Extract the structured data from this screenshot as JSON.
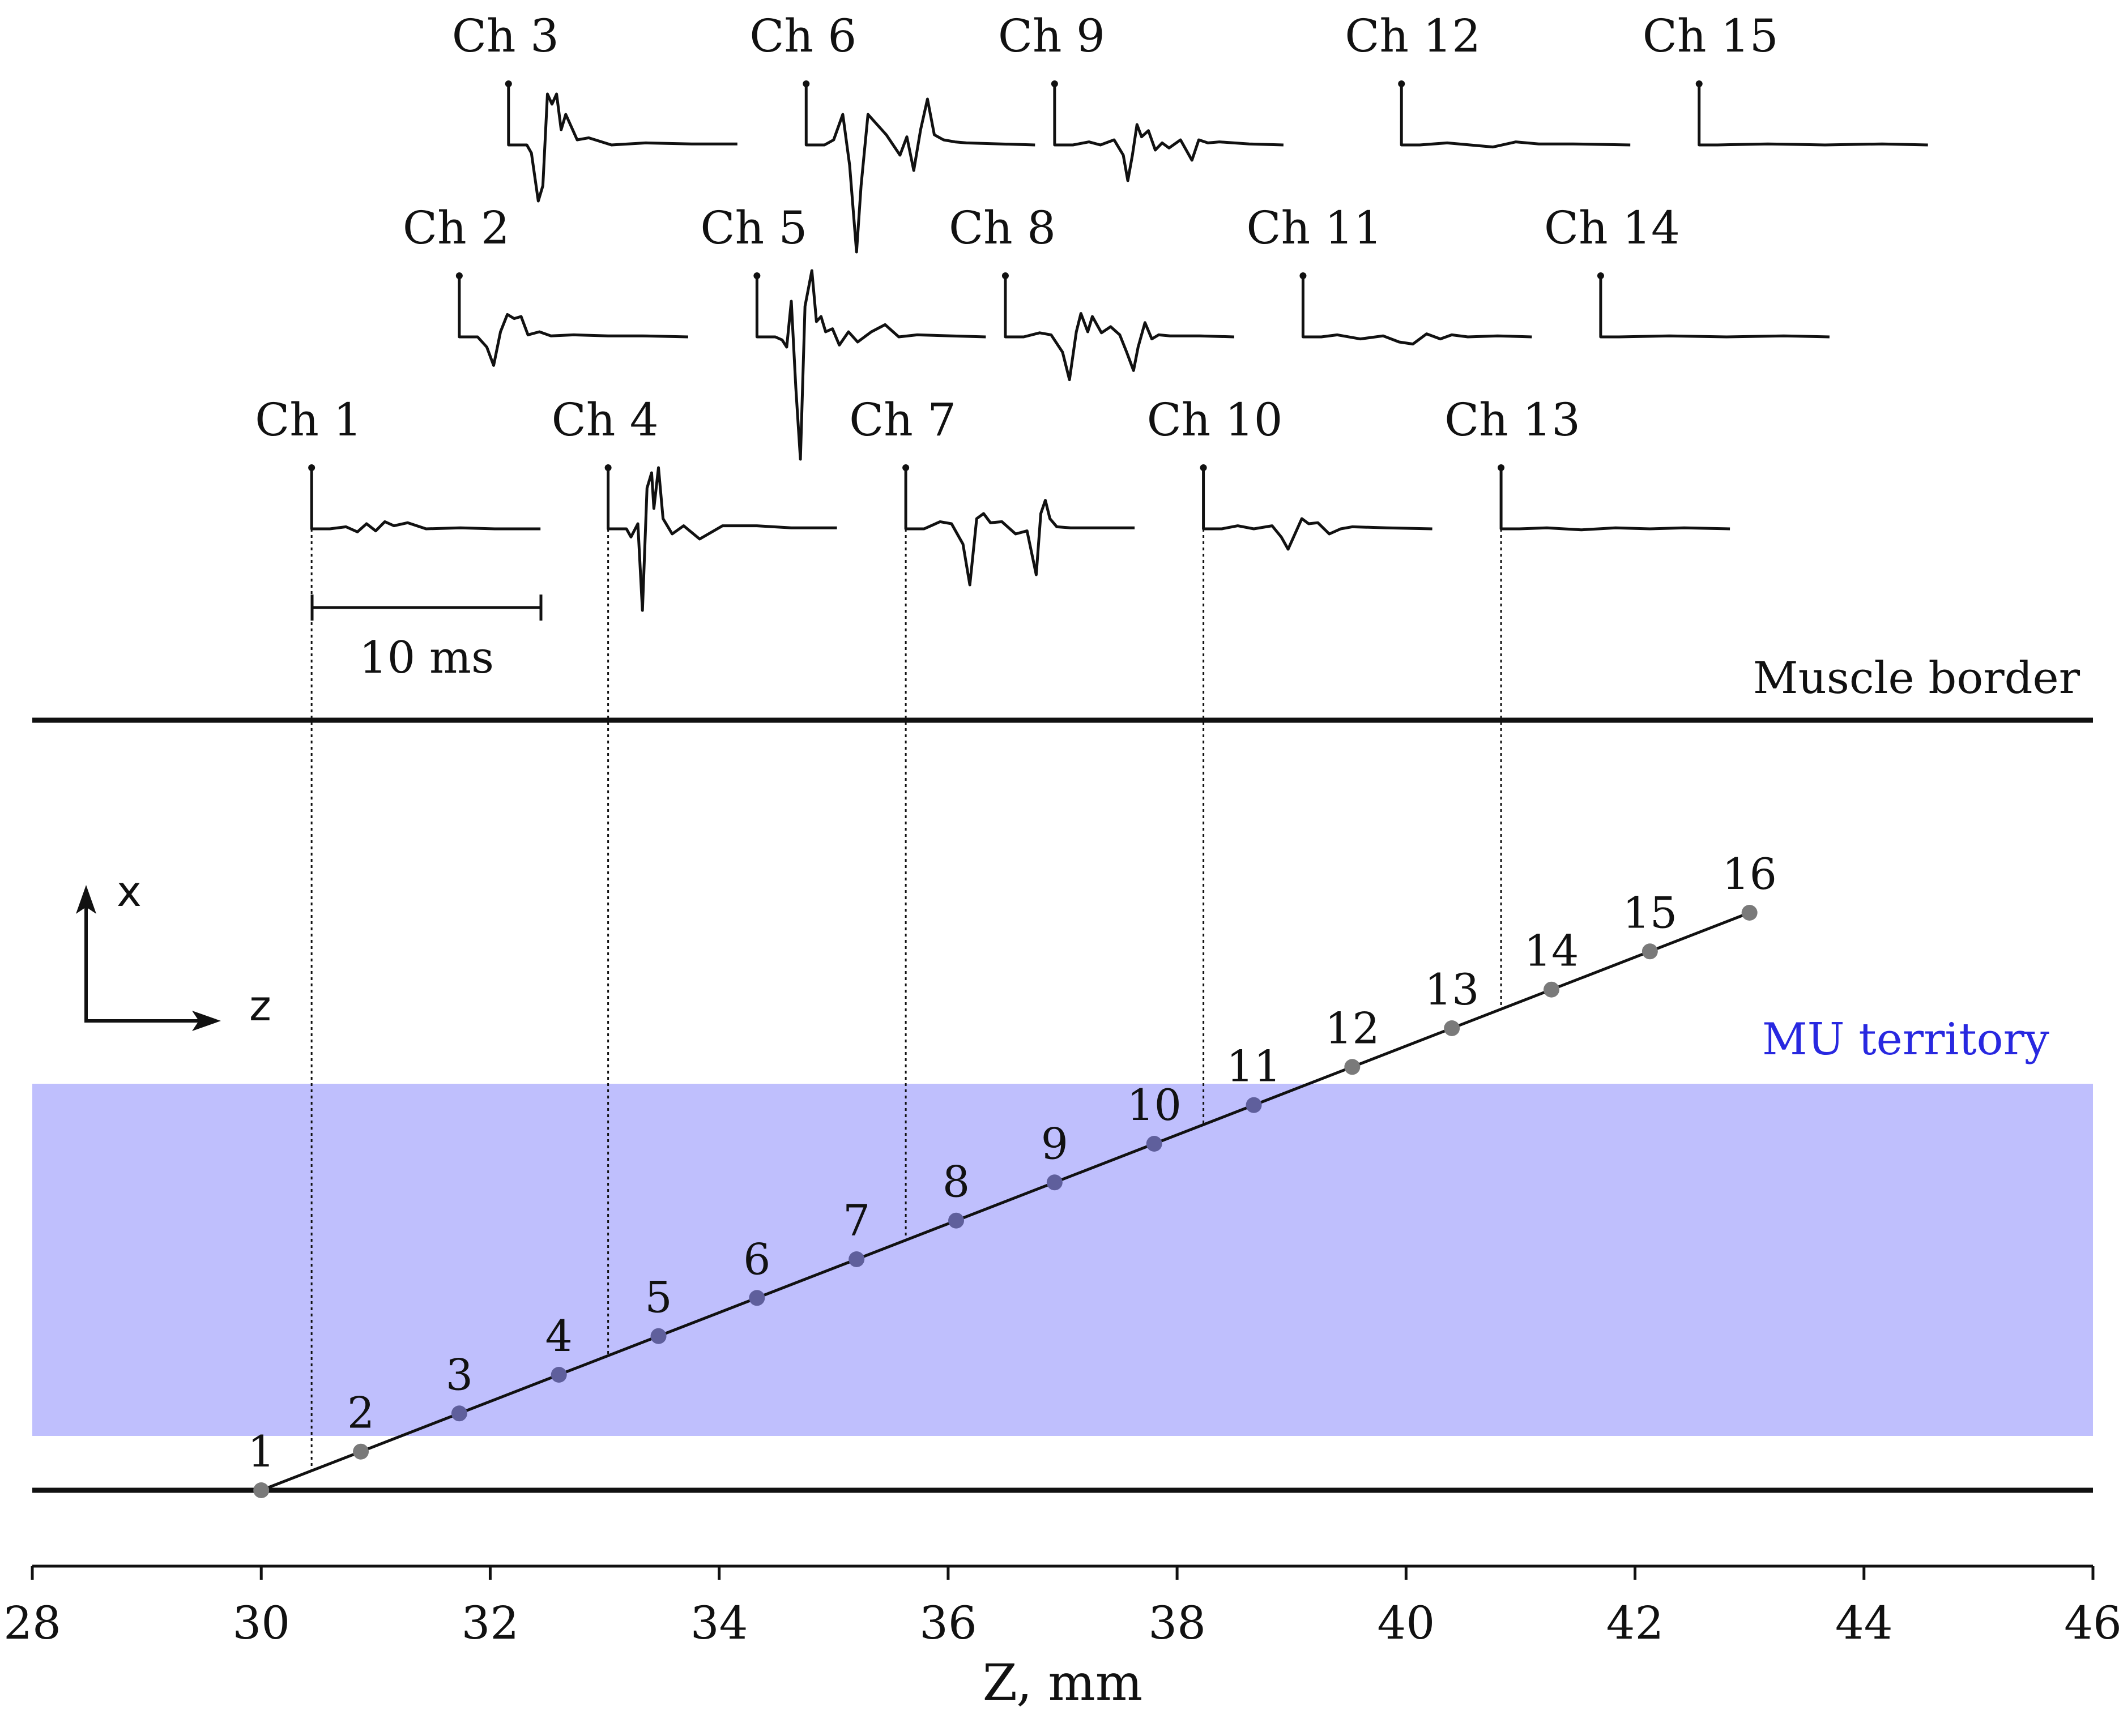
{
  "chart_data": {
    "type": "diagram",
    "x_axis": {
      "label": "Z, mm",
      "range": [
        28,
        46
      ],
      "ticks": [
        28,
        30,
        32,
        34,
        36,
        38,
        40,
        42,
        44,
        46
      ]
    },
    "orientation_arrows": {
      "up": "x",
      "right": "z"
    },
    "muscle_border_label": "Muscle border",
    "territory_label": "MU territory",
    "scale_bar_label": "10 ms",
    "colors": {
      "territory_fill": "#bfbffd",
      "territory_label": "#2828e0",
      "electrode_outside": "#7a7a7a",
      "electrode_inside": "#5f5f9c",
      "line": "#111111"
    },
    "electrodes": [
      {
        "label": "1",
        "z": 30.0
      },
      {
        "label": "2",
        "z": 30.87
      },
      {
        "label": "3",
        "z": 31.73
      },
      {
        "label": "4",
        "z": 32.6
      },
      {
        "label": "5",
        "z": 33.47
      },
      {
        "label": "6",
        "z": 34.33
      },
      {
        "label": "7",
        "z": 35.2
      },
      {
        "label": "8",
        "z": 36.07
      },
      {
        "label": "9",
        "z": 36.93
      },
      {
        "label": "10",
        "z": 37.8
      },
      {
        "label": "11",
        "z": 38.67
      },
      {
        "label": "12",
        "z": 39.53
      },
      {
        "label": "13",
        "z": 40.4
      },
      {
        "label": "14",
        "z": 41.27
      },
      {
        "label": "15",
        "z": 42.13
      },
      {
        "label": "16",
        "z": 43.0
      }
    ],
    "channels": [
      {
        "label": "Ch 1",
        "z": 30.44,
        "row": 0,
        "shape": [
          [
            0,
            0
          ],
          [
            0.08,
            0
          ],
          [
            0.15,
            0.02
          ],
          [
            0.2,
            -0.03
          ],
          [
            0.24,
            0.05
          ],
          [
            0.28,
            -0.02
          ],
          [
            0.32,
            0.07
          ],
          [
            0.36,
            0.03
          ],
          [
            0.42,
            0.06
          ],
          [
            0.5,
            0
          ],
          [
            0.65,
            0.01
          ],
          [
            0.8,
            0
          ],
          [
            1,
            0
          ]
        ]
      },
      {
        "label": "Ch 2",
        "z": 31.73,
        "row": 1,
        "shape": [
          [
            0,
            0
          ],
          [
            0.08,
            0
          ],
          [
            0.12,
            -0.1
          ],
          [
            0.15,
            -0.28
          ],
          [
            0.18,
            0.05
          ],
          [
            0.21,
            0.22
          ],
          [
            0.24,
            0.18
          ],
          [
            0.27,
            0.2
          ],
          [
            0.3,
            0.02
          ],
          [
            0.35,
            0.05
          ],
          [
            0.4,
            0.01
          ],
          [
            0.5,
            0.02
          ],
          [
            0.65,
            0.01
          ],
          [
            0.8,
            0.01
          ],
          [
            1,
            0
          ]
        ]
      },
      {
        "label": "Ch 3",
        "z": 32.16,
        "row": 2,
        "shape": [
          [
            0,
            0
          ],
          [
            0.08,
            0
          ],
          [
            0.1,
            -0.08
          ],
          [
            0.13,
            -0.55
          ],
          [
            0.15,
            -0.4
          ],
          [
            0.17,
            0.5
          ],
          [
            0.19,
            0.4
          ],
          [
            0.21,
            0.5
          ],
          [
            0.23,
            0.15
          ],
          [
            0.25,
            0.3
          ],
          [
            0.27,
            0.2
          ],
          [
            0.3,
            0.05
          ],
          [
            0.35,
            0.07
          ],
          [
            0.45,
            0
          ],
          [
            0.6,
            0.02
          ],
          [
            0.8,
            0.01
          ],
          [
            1,
            0.01
          ]
        ]
      },
      {
        "label": "Ch 4",
        "z": 33.03,
        "row": 0,
        "shape": [
          [
            0,
            0
          ],
          [
            0.08,
            0
          ],
          [
            0.1,
            -0.08
          ],
          [
            0.13,
            0.05
          ],
          [
            0.15,
            -0.8
          ],
          [
            0.17,
            0.4
          ],
          [
            0.19,
            0.55
          ],
          [
            0.2,
            0.2
          ],
          [
            0.22,
            0.6
          ],
          [
            0.24,
            0.1
          ],
          [
            0.28,
            -0.05
          ],
          [
            0.33,
            0.03
          ],
          [
            0.4,
            -0.1
          ],
          [
            0.5,
            0.03
          ],
          [
            0.65,
            0.03
          ],
          [
            0.8,
            0.01
          ],
          [
            1,
            0.01
          ]
        ]
      },
      {
        "label": "Ch 5",
        "z": 34.33,
        "row": 1,
        "shape": [
          [
            0,
            0
          ],
          [
            0.08,
            0
          ],
          [
            0.11,
            -0.03
          ],
          [
            0.13,
            -0.1
          ],
          [
            0.15,
            0.35
          ],
          [
            0.17,
            -0.5
          ],
          [
            0.19,
            -1.2
          ],
          [
            0.21,
            0.3
          ],
          [
            0.24,
            0.65
          ],
          [
            0.26,
            0.15
          ],
          [
            0.28,
            0.2
          ],
          [
            0.3,
            0.05
          ],
          [
            0.33,
            0.08
          ],
          [
            0.36,
            -0.08
          ],
          [
            0.4,
            0.05
          ],
          [
            0.44,
            -0.05
          ],
          [
            0.5,
            0.05
          ],
          [
            0.56,
            0.12
          ],
          [
            0.62,
            0
          ],
          [
            0.7,
            0.02
          ],
          [
            0.85,
            0.01
          ],
          [
            1,
            0
          ]
        ]
      },
      {
        "label": "Ch 6",
        "z": 34.76,
        "row": 2,
        "shape": [
          [
            0,
            0
          ],
          [
            0.08,
            0
          ],
          [
            0.12,
            0.05
          ],
          [
            0.16,
            0.3
          ],
          [
            0.19,
            -0.2
          ],
          [
            0.22,
            -1.05
          ],
          [
            0.24,
            -0.4
          ],
          [
            0.27,
            0.3
          ],
          [
            0.31,
            0.2
          ],
          [
            0.35,
            0.1
          ],
          [
            0.38,
            0
          ],
          [
            0.41,
            -0.1
          ],
          [
            0.44,
            0.08
          ],
          [
            0.47,
            -0.25
          ],
          [
            0.5,
            0.15
          ],
          [
            0.53,
            0.45
          ],
          [
            0.56,
            0.1
          ],
          [
            0.6,
            0.05
          ],
          [
            0.65,
            0.03
          ],
          [
            0.7,
            0.02
          ],
          [
            0.85,
            0.01
          ],
          [
            1,
            0
          ]
        ]
      },
      {
        "label": "Ch 7",
        "z": 35.63,
        "row": 0,
        "shape": [
          [
            0,
            0
          ],
          [
            0.08,
            0
          ],
          [
            0.15,
            0.07
          ],
          [
            0.2,
            0.05
          ],
          [
            0.25,
            -0.15
          ],
          [
            0.28,
            -0.55
          ],
          [
            0.31,
            0.1
          ],
          [
            0.34,
            0.15
          ],
          [
            0.37,
            0.06
          ],
          [
            0.42,
            0.07
          ],
          [
            0.48,
            -0.05
          ],
          [
            0.53,
            -0.02
          ],
          [
            0.57,
            -0.45
          ],
          [
            0.59,
            0.15
          ],
          [
            0.61,
            0.28
          ],
          [
            0.63,
            0.1
          ],
          [
            0.66,
            0.02
          ],
          [
            0.72,
            0.01
          ],
          [
            0.85,
            0.01
          ],
          [
            1,
            0.01
          ]
        ]
      },
      {
        "label": "Ch 8",
        "z": 36.5,
        "row": 1,
        "shape": [
          [
            0,
            0
          ],
          [
            0.08,
            0
          ],
          [
            0.15,
            0.04
          ],
          [
            0.2,
            0.02
          ],
          [
            0.25,
            -0.15
          ],
          [
            0.28,
            -0.42
          ],
          [
            0.31,
            0.05
          ],
          [
            0.33,
            0.23
          ],
          [
            0.36,
            0.05
          ],
          [
            0.38,
            0.2
          ],
          [
            0.42,
            0.04
          ],
          [
            0.46,
            0.1
          ],
          [
            0.5,
            0.02
          ],
          [
            0.53,
            -0.15
          ],
          [
            0.56,
            -0.33
          ],
          [
            0.58,
            -0.1
          ],
          [
            0.61,
            0.14
          ],
          [
            0.64,
            -0.02
          ],
          [
            0.67,
            0.02
          ],
          [
            0.72,
            0.01
          ],
          [
            0.85,
            0.01
          ],
          [
            1,
            0
          ]
        ]
      },
      {
        "label": "Ch 9",
        "z": 36.93,
        "row": 2,
        "shape": [
          [
            0,
            0
          ],
          [
            0.08,
            0
          ],
          [
            0.15,
            0.03
          ],
          [
            0.2,
            0
          ],
          [
            0.26,
            0.05
          ],
          [
            0.3,
            -0.1
          ],
          [
            0.32,
            -0.35
          ],
          [
            0.34,
            -0.1
          ],
          [
            0.36,
            0.2
          ],
          [
            0.38,
            0.08
          ],
          [
            0.41,
            0.14
          ],
          [
            0.44,
            -0.05
          ],
          [
            0.47,
            0.02
          ],
          [
            0.5,
            -0.03
          ],
          [
            0.55,
            0.05
          ],
          [
            0.6,
            -0.15
          ],
          [
            0.63,
            0.05
          ],
          [
            0.67,
            0.02
          ],
          [
            0.72,
            0.03
          ],
          [
            0.85,
            0.01
          ],
          [
            1,
            0
          ]
        ]
      },
      {
        "label": "Ch 10",
        "z": 38.23,
        "row": 0,
        "shape": [
          [
            0,
            0
          ],
          [
            0.08,
            0
          ],
          [
            0.15,
            0.03
          ],
          [
            0.22,
            0
          ],
          [
            0.3,
            0.03
          ],
          [
            0.34,
            -0.08
          ],
          [
            0.37,
            -0.2
          ],
          [
            0.4,
            -0.05
          ],
          [
            0.43,
            0.1
          ],
          [
            0.46,
            0.05
          ],
          [
            0.5,
            0.06
          ],
          [
            0.55,
            -0.05
          ],
          [
            0.6,
            0
          ],
          [
            0.65,
            0.02
          ],
          [
            0.8,
            0.01
          ],
          [
            1,
            0
          ]
        ]
      },
      {
        "label": "Ch 11",
        "z": 39.1,
        "row": 1,
        "shape": [
          [
            0,
            0
          ],
          [
            0.08,
            0
          ],
          [
            0.15,
            0.02
          ],
          [
            0.25,
            -0.02
          ],
          [
            0.35,
            0.01
          ],
          [
            0.42,
            -0.05
          ],
          [
            0.48,
            -0.07
          ],
          [
            0.54,
            0.03
          ],
          [
            0.6,
            -0.02
          ],
          [
            0.65,
            0.02
          ],
          [
            0.72,
            0
          ],
          [
            0.85,
            0.01
          ],
          [
            1,
            0
          ]
        ]
      },
      {
        "label": "Ch 12",
        "z": 39.96,
        "row": 2,
        "shape": [
          [
            0,
            0
          ],
          [
            0.08,
            0
          ],
          [
            0.2,
            0.02
          ],
          [
            0.3,
            0
          ],
          [
            0.4,
            -0.02
          ],
          [
            0.5,
            0.03
          ],
          [
            0.6,
            0.01
          ],
          [
            0.75,
            0.01
          ],
          [
            1,
            0
          ]
        ]
      },
      {
        "label": "Ch 13",
        "z": 40.83,
        "row": 0,
        "shape": [
          [
            0,
            0
          ],
          [
            0.08,
            0
          ],
          [
            0.2,
            0.01
          ],
          [
            0.35,
            -0.01
          ],
          [
            0.5,
            0.01
          ],
          [
            0.65,
            0
          ],
          [
            0.8,
            0.01
          ],
          [
            1,
            0
          ]
        ]
      },
      {
        "label": "Ch 14",
        "z": 41.7,
        "row": 1,
        "shape": [
          [
            0,
            0
          ],
          [
            0.08,
            0
          ],
          [
            0.3,
            0.01
          ],
          [
            0.55,
            0
          ],
          [
            0.8,
            0.01
          ],
          [
            1,
            0
          ]
        ]
      },
      {
        "label": "Ch 15",
        "z": 42.56,
        "row": 2,
        "shape": [
          [
            0,
            0
          ],
          [
            0.08,
            0
          ],
          [
            0.3,
            0.01
          ],
          [
            0.55,
            0
          ],
          [
            0.8,
            0.01
          ],
          [
            1,
            0
          ]
        ]
      }
    ]
  }
}
